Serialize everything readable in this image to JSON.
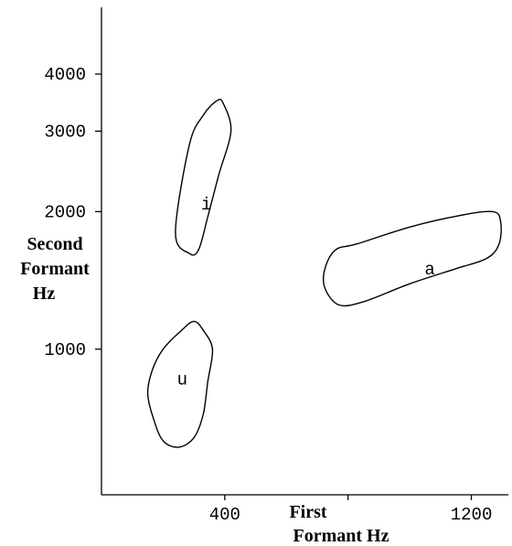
{
  "chart_data": {
    "type": "scatter",
    "title": "",
    "xlabel": "First Formant Hz",
    "ylabel": "Second Formant Hz",
    "xlabel_lines": [
      "First",
      "Formant Hz"
    ],
    "ylabel_lines": [
      "Second",
      "Formant",
      "Hz"
    ],
    "x_ticks": [
      400,
      800,
      1200
    ],
    "x_tick_labels": [
      "400",
      "",
      "1200"
    ],
    "y_ticks": [
      1000,
      2000,
      3000,
      4000
    ],
    "y_tick_labels": [
      "1000",
      "2000",
      "3000",
      "4000"
    ],
    "y_scale": "log",
    "xlim": [
      0,
      1320
    ],
    "ylim": [
      480,
      5600
    ],
    "grid": false,
    "regions": [
      {
        "label": "i",
        "label_at": [
          340,
          2080
        ],
        "outline": [
          [
            240,
            1800
          ],
          [
            285,
            2800
          ],
          [
            330,
            3250
          ],
          [
            375,
            3500
          ],
          [
            395,
            3450
          ],
          [
            420,
            3000
          ],
          [
            380,
            2400
          ],
          [
            345,
            1950
          ],
          [
            315,
            1650
          ],
          [
            285,
            1620
          ],
          [
            240,
            1800
          ]
        ]
      },
      {
        "label": "a",
        "label_at": [
          1065,
          1500
        ],
        "outline": [
          [
            760,
            1650
          ],
          [
            830,
            1700
          ],
          [
            1000,
            1850
          ],
          [
            1160,
            1960
          ],
          [
            1270,
            2000
          ],
          [
            1295,
            1900
          ],
          [
            1290,
            1700
          ],
          [
            1250,
            1580
          ],
          [
            1150,
            1500
          ],
          [
            1000,
            1390
          ],
          [
            850,
            1270
          ],
          [
            770,
            1250
          ],
          [
            725,
            1360
          ],
          [
            725,
            1500
          ],
          [
            760,
            1650
          ]
        ]
      },
      {
        "label": "u",
        "label_at": [
          262,
          860
        ],
        "outline": [
          [
            200,
            1000
          ],
          [
            260,
            1100
          ],
          [
            300,
            1150
          ],
          [
            330,
            1100
          ],
          [
            360,
            1000
          ],
          [
            345,
            850
          ],
          [
            330,
            720
          ],
          [
            300,
            640
          ],
          [
            250,
            610
          ],
          [
            200,
            630
          ],
          [
            170,
            700
          ],
          [
            150,
            800
          ],
          [
            165,
            900
          ],
          [
            200,
            1000
          ]
        ]
      }
    ]
  }
}
